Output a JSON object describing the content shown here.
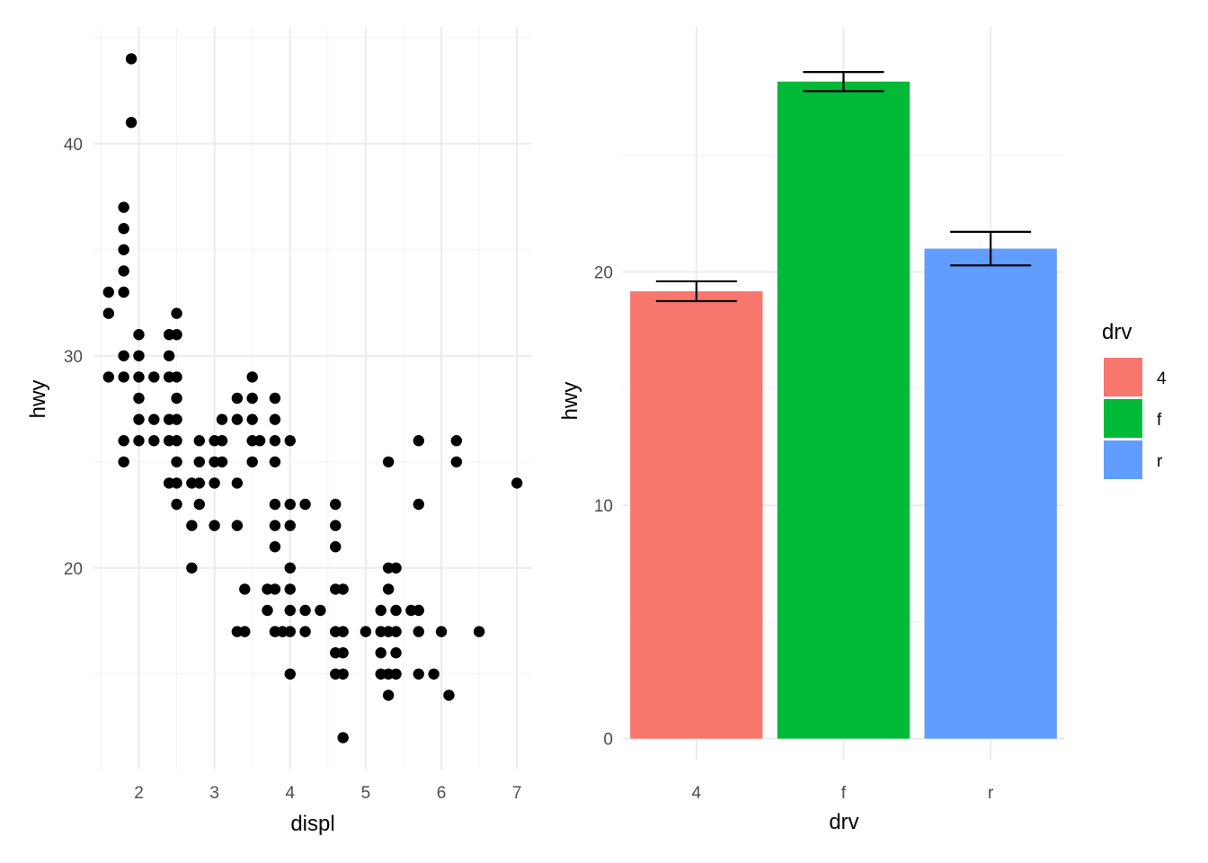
{
  "chart_data": [
    {
      "type": "scatter",
      "xlabel": "displ",
      "ylabel": "hwy",
      "xlim": [
        1.4,
        7.2
      ],
      "ylim": [
        10.5,
        45.5
      ],
      "x_ticks": [
        2,
        3,
        4,
        5,
        6,
        7
      ],
      "x_tick_labels": [
        "2",
        "3",
        "4",
        "5",
        "6",
        "7"
      ],
      "y_ticks": [
        20,
        30,
        40
      ],
      "y_tick_labels": [
        "20",
        "30",
        "40"
      ],
      "grid": true,
      "point_color": "#000000",
      "points": [
        [
          1.9,
          44
        ],
        [
          1.9,
          41
        ],
        [
          1.8,
          37
        ],
        [
          1.8,
          36
        ],
        [
          1.8,
          35
        ],
        [
          1.8,
          34
        ],
        [
          1.8,
          33
        ],
        [
          1.8,
          30
        ],
        [
          1.8,
          29
        ],
        [
          1.8,
          26
        ],
        [
          1.8,
          25
        ],
        [
          1.6,
          33
        ],
        [
          1.6,
          32
        ],
        [
          1.6,
          29
        ],
        [
          2.0,
          31
        ],
        [
          2.0,
          30
        ],
        [
          2.0,
          29
        ],
        [
          2.0,
          28
        ],
        [
          2.0,
          27
        ],
        [
          2.0,
          26
        ],
        [
          2.2,
          29
        ],
        [
          2.2,
          27
        ],
        [
          2.2,
          26
        ],
        [
          2.4,
          31
        ],
        [
          2.4,
          30
        ],
        [
          2.4,
          29
        ],
        [
          2.4,
          27
        ],
        [
          2.4,
          26
        ],
        [
          2.4,
          24
        ],
        [
          2.5,
          32
        ],
        [
          2.5,
          31
        ],
        [
          2.5,
          29
        ],
        [
          2.5,
          28
        ],
        [
          2.5,
          27
        ],
        [
          2.5,
          26
        ],
        [
          2.5,
          25
        ],
        [
          2.5,
          24
        ],
        [
          2.5,
          23
        ],
        [
          2.7,
          24
        ],
        [
          2.7,
          22
        ],
        [
          2.7,
          20
        ],
        [
          2.8,
          26
        ],
        [
          2.8,
          25
        ],
        [
          2.8,
          24
        ],
        [
          2.8,
          23
        ],
        [
          3.0,
          26
        ],
        [
          3.0,
          25
        ],
        [
          3.0,
          24
        ],
        [
          3.0,
          22
        ],
        [
          3.1,
          27
        ],
        [
          3.1,
          26
        ],
        [
          3.1,
          25
        ],
        [
          3.3,
          28
        ],
        [
          3.3,
          27
        ],
        [
          3.3,
          24
        ],
        [
          3.3,
          22
        ],
        [
          3.3,
          17
        ],
        [
          3.4,
          19
        ],
        [
          3.4,
          17
        ],
        [
          3.5,
          29
        ],
        [
          3.5,
          28
        ],
        [
          3.5,
          27
        ],
        [
          3.5,
          26
        ],
        [
          3.5,
          25
        ],
        [
          3.6,
          26
        ],
        [
          3.7,
          19
        ],
        [
          3.7,
          18
        ],
        [
          3.8,
          28
        ],
        [
          3.8,
          27
        ],
        [
          3.8,
          26
        ],
        [
          3.8,
          25
        ],
        [
          3.8,
          23
        ],
        [
          3.8,
          22
        ],
        [
          3.8,
          21
        ],
        [
          3.8,
          19
        ],
        [
          3.8,
          17
        ],
        [
          3.9,
          17
        ],
        [
          4.0,
          26
        ],
        [
          4.0,
          23
        ],
        [
          4.0,
          22
        ],
        [
          4.0,
          20
        ],
        [
          4.0,
          19
        ],
        [
          4.0,
          18
        ],
        [
          4.0,
          17
        ],
        [
          4.0,
          15
        ],
        [
          4.2,
          23
        ],
        [
          4.2,
          18
        ],
        [
          4.2,
          17
        ],
        [
          4.4,
          18
        ],
        [
          4.6,
          23
        ],
        [
          4.6,
          22
        ],
        [
          4.6,
          21
        ],
        [
          4.6,
          19
        ],
        [
          4.6,
          17
        ],
        [
          4.6,
          16
        ],
        [
          4.6,
          15
        ],
        [
          4.7,
          19
        ],
        [
          4.7,
          17
        ],
        [
          4.7,
          16
        ],
        [
          4.7,
          15
        ],
        [
          4.7,
          12
        ],
        [
          5.0,
          17
        ],
        [
          5.2,
          18
        ],
        [
          5.2,
          17
        ],
        [
          5.2,
          16
        ],
        [
          5.2,
          15
        ],
        [
          5.3,
          25
        ],
        [
          5.3,
          20
        ],
        [
          5.3,
          19
        ],
        [
          5.3,
          17
        ],
        [
          5.3,
          15
        ],
        [
          5.3,
          14
        ],
        [
          5.4,
          20
        ],
        [
          5.4,
          18
        ],
        [
          5.4,
          17
        ],
        [
          5.4,
          16
        ],
        [
          5.4,
          15
        ],
        [
          5.6,
          18
        ],
        [
          5.7,
          26
        ],
        [
          5.7,
          23
        ],
        [
          5.7,
          18
        ],
        [
          5.7,
          17
        ],
        [
          5.7,
          15
        ],
        [
          5.9,
          15
        ],
        [
          6.0,
          17
        ],
        [
          6.1,
          14
        ],
        [
          6.2,
          26
        ],
        [
          6.2,
          25
        ],
        [
          6.5,
          17
        ],
        [
          7.0,
          24
        ]
      ]
    },
    {
      "type": "bar",
      "xlabel": "drv",
      "ylabel": "hwy",
      "categories": [
        "4",
        "f",
        "r"
      ],
      "values": [
        19.17,
        28.16,
        21.0
      ],
      "error_low": [
        18.75,
        27.75,
        20.28
      ],
      "error_high": [
        19.6,
        28.57,
        21.72
      ],
      "ylim": [
        -0.9,
        30.5
      ],
      "y_ticks": [
        0,
        10,
        20
      ],
      "y_tick_labels": [
        "0",
        "10",
        "20"
      ],
      "colors": [
        "#F8766D",
        "#00BA38",
        "#619CFF"
      ],
      "grid": true,
      "legend": {
        "title": "drv",
        "placement": "right",
        "items": [
          {
            "label": "4",
            "color": "#F8766D"
          },
          {
            "label": "f",
            "color": "#00BA38"
          },
          {
            "label": "r",
            "color": "#619CFF"
          }
        ]
      }
    }
  ]
}
